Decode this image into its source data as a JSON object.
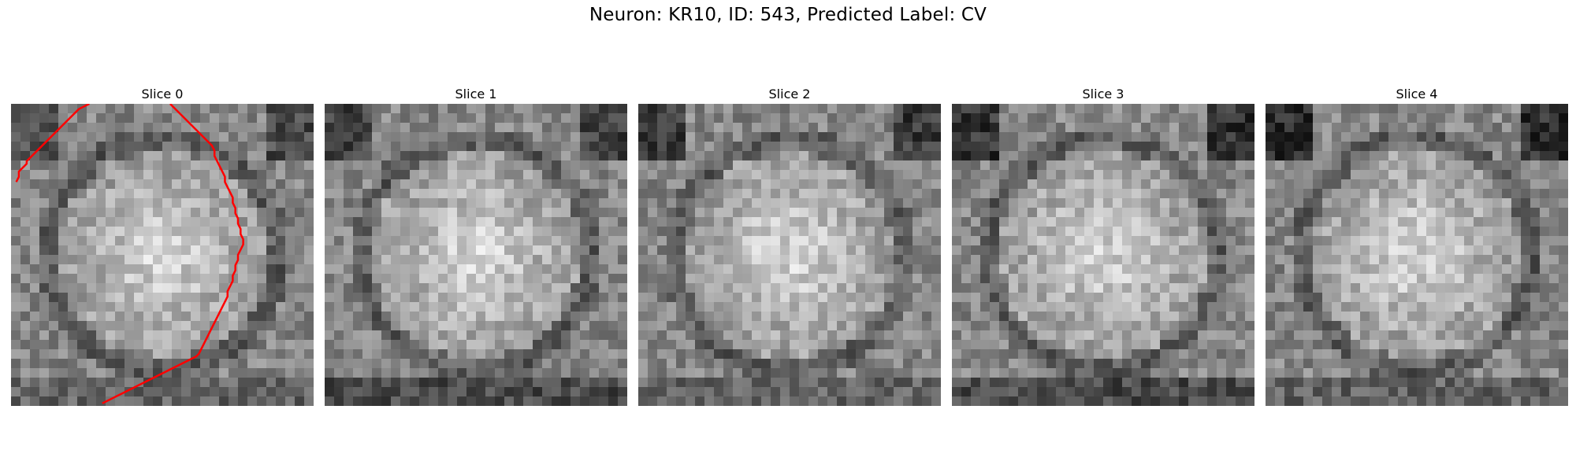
{
  "figure": {
    "title": "Neuron: KR10, ID: 543, Predicted Label: CV"
  },
  "outline_color": "#ff0000",
  "slices": [
    {
      "title": "Slice 0",
      "pattern": "bright-soma-center",
      "segments": [
        [
          [
            2,
            30
          ],
          [
            3,
            28
          ],
          [
            3,
            26
          ],
          [
            4,
            25
          ],
          [
            5,
            24
          ],
          [
            6,
            23
          ],
          [
            6,
            22
          ],
          [
            8,
            20
          ],
          [
            10,
            18
          ],
          [
            12,
            16
          ],
          [
            14,
            14
          ],
          [
            16,
            12
          ],
          [
            18,
            10
          ],
          [
            20,
            8
          ],
          [
            22,
            6
          ],
          [
            24,
            4
          ],
          [
            26,
            2
          ],
          [
            28,
            1
          ],
          [
            30,
            0
          ]
        ],
        [
          [
            61,
            0
          ],
          [
            63,
            2
          ],
          [
            65,
            4
          ],
          [
            67,
            6
          ],
          [
            69,
            8
          ],
          [
            71,
            10
          ],
          [
            73,
            12
          ],
          [
            75,
            14
          ],
          [
            77,
            16
          ],
          [
            78,
            18
          ],
          [
            78,
            20
          ],
          [
            79,
            22
          ],
          [
            80,
            24
          ],
          [
            81,
            26
          ],
          [
            82,
            28
          ],
          [
            82,
            30
          ],
          [
            83,
            32
          ],
          [
            84,
            34
          ],
          [
            85,
            36
          ],
          [
            85,
            38
          ],
          [
            86,
            40
          ],
          [
            86,
            42
          ],
          [
            87,
            44
          ],
          [
            87,
            46
          ],
          [
            88,
            48
          ],
          [
            88,
            50
          ],
          [
            89,
            52
          ],
          [
            89,
            54
          ],
          [
            88,
            56
          ],
          [
            87,
            58
          ],
          [
            87,
            60
          ],
          [
            86,
            62
          ],
          [
            86,
            64
          ],
          [
            85,
            66
          ],
          [
            85,
            68
          ],
          [
            84,
            70
          ],
          [
            83,
            72
          ],
          [
            83,
            74
          ],
          [
            82,
            76
          ],
          [
            81,
            78
          ],
          [
            80,
            80
          ],
          [
            79,
            82
          ],
          [
            78,
            84
          ],
          [
            77,
            86
          ],
          [
            76,
            88
          ],
          [
            75,
            90
          ],
          [
            74,
            92
          ],
          [
            73,
            94
          ],
          [
            72,
            96
          ],
          [
            71,
            97
          ],
          [
            69,
            98
          ],
          [
            67,
            99
          ],
          [
            65,
            100
          ],
          [
            63,
            101
          ],
          [
            61,
            102
          ],
          [
            59,
            103
          ],
          [
            57,
            104
          ],
          [
            55,
            105
          ],
          [
            53,
            106
          ],
          [
            51,
            107
          ],
          [
            49,
            108
          ],
          [
            47,
            109
          ],
          [
            45,
            110
          ],
          [
            43,
            111
          ],
          [
            41,
            112
          ],
          [
            39,
            113
          ],
          [
            37,
            114
          ],
          [
            35,
            115
          ]
        ]
      ]
    },
    {
      "title": "Slice 1",
      "pattern": "bright-soma-center",
      "segments": []
    },
    {
      "title": "Slice 2",
      "pattern": "bright-soma-center",
      "segments": []
    },
    {
      "title": "Slice 3",
      "pattern": "bright-soma-center",
      "segments": []
    },
    {
      "title": "Slice 4",
      "pattern": "bright-soma-center",
      "segments": []
    }
  ]
}
